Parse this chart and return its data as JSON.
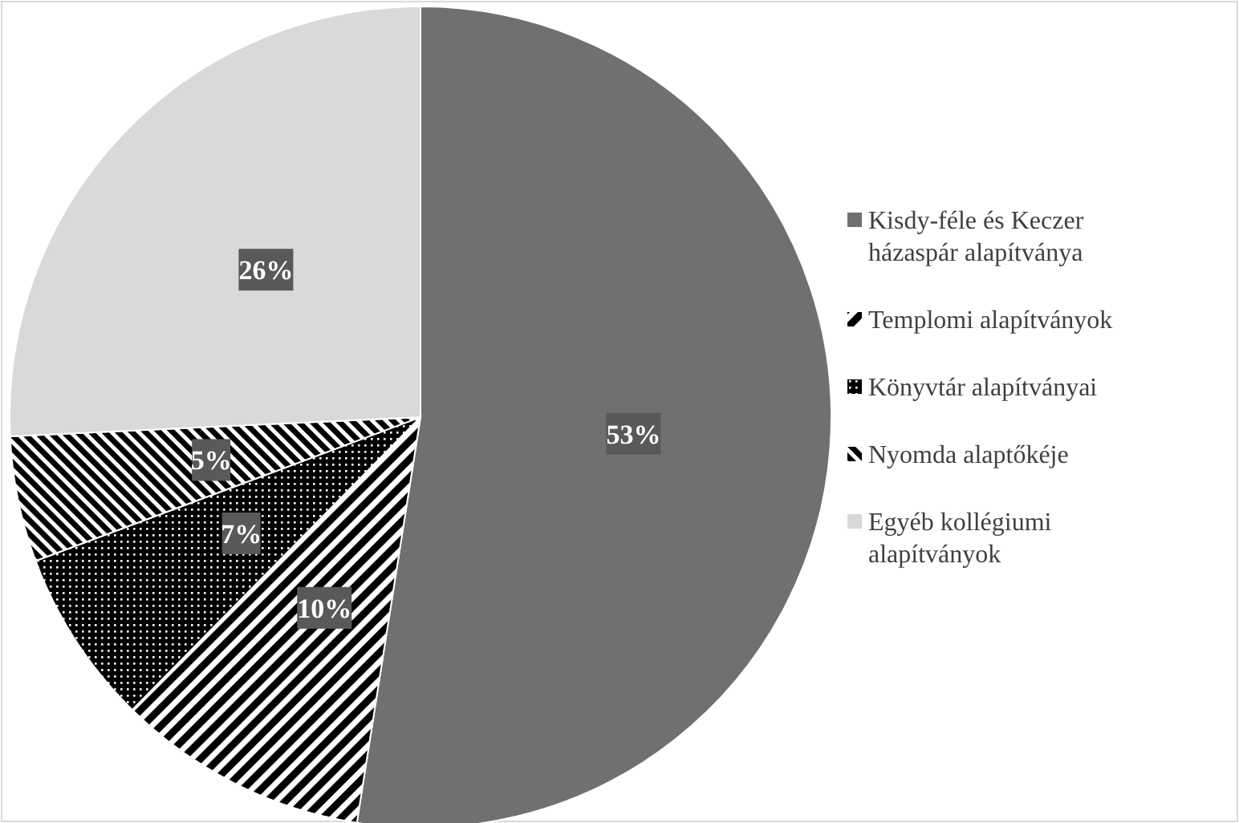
{
  "chart_data": {
    "type": "pie",
    "categories": [
      "Kisdy-féle és Keczer házaspár alapítványa",
      "Templomi alapítványok",
      "Könyvtár alapítványai",
      "Nyomda alaptőkéje",
      "Egyéb kollégiumi alapítványok"
    ],
    "values": [
      53,
      10,
      7,
      5,
      26
    ],
    "colors": [
      "#707070",
      "#000000",
      "#000000",
      "#000000",
      "#d9d9d9"
    ],
    "value_labels": [
      "53%",
      "10%",
      "7%",
      "5%",
      "26%"
    ],
    "legend": "right"
  }
}
